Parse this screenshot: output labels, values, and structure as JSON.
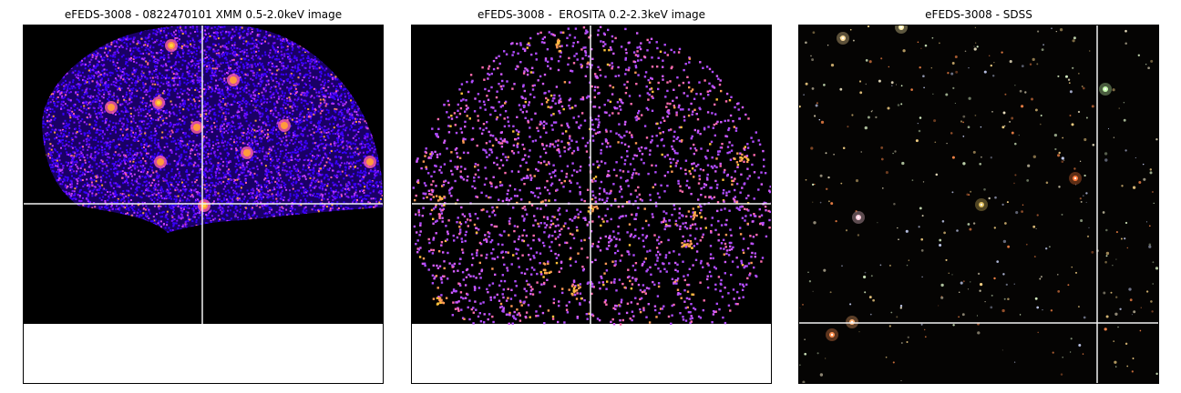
{
  "panels": [
    {
      "title": "eFEDS-3008 - 0822470101 XMM 0.5-2.0keV image",
      "image_kind": "xmm",
      "colormap": [
        "#3a00ff",
        "#7a12ff",
        "#c43cff",
        "#ff5fa8",
        "#ff9a3c",
        "#ffd23a"
      ]
    },
    {
      "title": "eFEDS-3008 -  EROSITA 0.2-2.3keV image",
      "image_kind": "erosita",
      "colormap": [
        "#b04cff",
        "#d35cff",
        "#ff6cb0",
        "#ff9a55",
        "#ffc23a"
      ]
    },
    {
      "title": "eFEDS-3008 - SDSS",
      "image_kind": "sdss",
      "colormap": [
        "#f4e9c8",
        "#ffd98a",
        "#ff8a4a",
        "#cfd8ff",
        "#e6ffd0"
      ]
    }
  ],
  "colors": {
    "image_background": "#000000",
    "sdss_background": "#050403",
    "crosshair": "#f2f2f2",
    "page_background": "#ffffff"
  }
}
